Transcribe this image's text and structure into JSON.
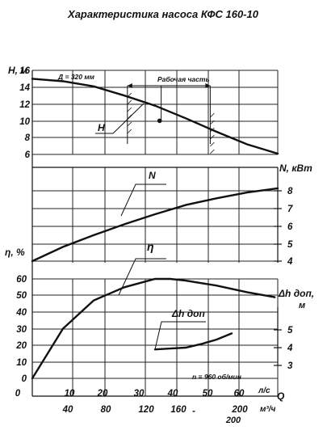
{
  "chart_data": {
    "type": "line",
    "title": "Характеристика насоса КФС 160-10",
    "x_primary": {
      "label": "л/с",
      "ticks": [
        "0",
        "10",
        "20",
        "30",
        "40",
        "50",
        "60"
      ],
      "symbol": "Q"
    },
    "x_secondary": {
      "label": "м³/ч",
      "ticks": [
        "40",
        "80",
        "120",
        "160",
        "200"
      ]
    },
    "extra_labels": {
      "dash": "-",
      "hundred_60": "200"
    },
    "panels": {
      "head": {
        "axis_label": "H, м",
        "ticks": [
          "6",
          "8",
          "10",
          "12",
          "14",
          "16"
        ],
        "diameter_label": "Д = 320 мм",
        "work_zone_label": "Рабочая часть",
        "curve_label": "H",
        "series": {
          "name": "H",
          "x": [
            0,
            10,
            20,
            30,
            40,
            50,
            60,
            70,
            80
          ],
          "y": [
            15.0,
            14.7,
            14.1,
            13.0,
            11.8,
            10.3,
            8.7,
            7.2,
            6.1
          ]
        },
        "work_zone_q": [
          31,
          42,
          58
        ],
        "work_point": {
          "x": 41.5,
          "y": 10.0
        }
      },
      "power": {
        "axis_label": "N, кВт",
        "ticks": [
          "4",
          "5",
          "6",
          "7",
          "8"
        ],
        "curve_label": "N",
        "series": {
          "name": "N",
          "x": [
            0,
            10,
            20,
            30,
            40,
            50,
            60,
            70,
            80
          ],
          "y": [
            4.0,
            4.85,
            5.55,
            6.2,
            6.8,
            7.35,
            7.75,
            8.1,
            8.35
          ]
        }
      },
      "efficiency": {
        "axis_label": "η, %",
        "ticks": [
          "0",
          "10",
          "20",
          "30",
          "40",
          "50",
          "60"
        ],
        "curve_label": "η",
        "series": {
          "name": "η",
          "x": [
            0,
            10,
            20,
            30,
            40,
            45,
            50,
            60,
            70,
            79
          ],
          "y": [
            0,
            30,
            47,
            55,
            60,
            60,
            59,
            56,
            52,
            49
          ]
        }
      },
      "npsh": {
        "axis_label": "Δh доп, м",
        "ticks": [
          "3",
          "4",
          "5"
        ],
        "curve_label": "Δh доп",
        "series": {
          "name": "Δh доп",
          "x": [
            40,
            45,
            50,
            55,
            60,
            65
          ],
          "y": [
            3.9,
            3.95,
            4.0,
            4.2,
            4.45,
            4.8
          ]
        }
      }
    },
    "speed_note": "n = 960 об/мин",
    "grid": true
  }
}
